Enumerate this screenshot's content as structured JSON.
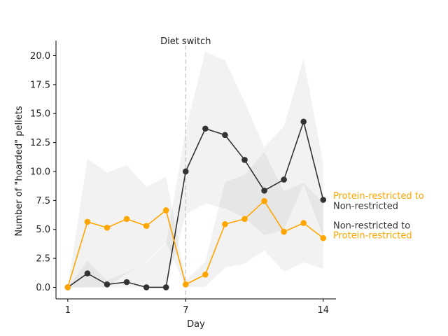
{
  "chart_data": {
    "type": "line",
    "title": "",
    "xlabel": "Day",
    "ylabel": "Number of \"hoarded\" pellets",
    "xlim": [
      0.4,
      14.65
    ],
    "ylim": [
      -1.0,
      21.3
    ],
    "xticks": [
      1,
      7,
      14
    ],
    "yticks": [
      0.0,
      2.5,
      5.0,
      7.5,
      10.0,
      12.5,
      15.0,
      17.5,
      20.0
    ],
    "ytick_labels": [
      "0.0",
      "2.5",
      "5.0",
      "7.5",
      "10.0",
      "12.5",
      "15.0",
      "17.5",
      "20.0"
    ],
    "grid": false,
    "x": [
      1,
      2,
      3,
      4,
      5,
      6,
      7,
      8,
      9,
      10,
      11,
      12,
      13,
      14
    ],
    "series": [
      {
        "name": "",
        "color": "#333333",
        "values": [
          0.0,
          1.2,
          0.25,
          0.45,
          0.0,
          0.0,
          10.0,
          13.7,
          13.15,
          11.0,
          8.35,
          9.3,
          14.3,
          7.55
        ],
        "ci_low": [
          0.0,
          0.0,
          0.0,
          0.0,
          0.0,
          0.0,
          6.3,
          7.25,
          6.8,
          6.0,
          4.5,
          4.95,
          8.9,
          4.4
        ],
        "ci_high": [
          0.0,
          2.3,
          0.6,
          1.3,
          2.1,
          3.75,
          13.6,
          20.35,
          19.6,
          16.0,
          12.1,
          13.9,
          19.7,
          10.7
        ]
      },
      {
        "name": "",
        "color": "#FFA500",
        "values": [
          0.0,
          5.65,
          5.15,
          5.9,
          5.3,
          6.65,
          0.25,
          1.1,
          5.45,
          5.9,
          7.45,
          4.8,
          5.55,
          4.25
        ],
        "ci_low": [
          0.0,
          0.0,
          0.0,
          1.2,
          2.15,
          3.85,
          0.0,
          0.05,
          1.7,
          2.05,
          3.2,
          1.35,
          2.15,
          1.6
        ],
        "ci_high": [
          0.0,
          11.1,
          9.9,
          10.55,
          8.65,
          9.55,
          0.6,
          2.2,
          9.1,
          9.7,
          11.7,
          8.3,
          9.0,
          7.3
        ]
      }
    ],
    "vline": {
      "x": 7,
      "label": "Diet switch",
      "color": "#cccccc"
    },
    "end_labels": [
      {
        "series_index": 1,
        "y": 7.9,
        "color": "#FFA500",
        "text": "Protein-restricted to"
      },
      {
        "series_index": 0,
        "y": 7.05,
        "color": "#333333",
        "text": "Non-restricted"
      },
      {
        "series_index": 0,
        "y": 5.35,
        "color": "#333333",
        "text": "Non-restricted to"
      },
      {
        "series_index": 1,
        "y": 4.5,
        "color": "#FFA500",
        "text": "Protein-restricted"
      }
    ]
  }
}
